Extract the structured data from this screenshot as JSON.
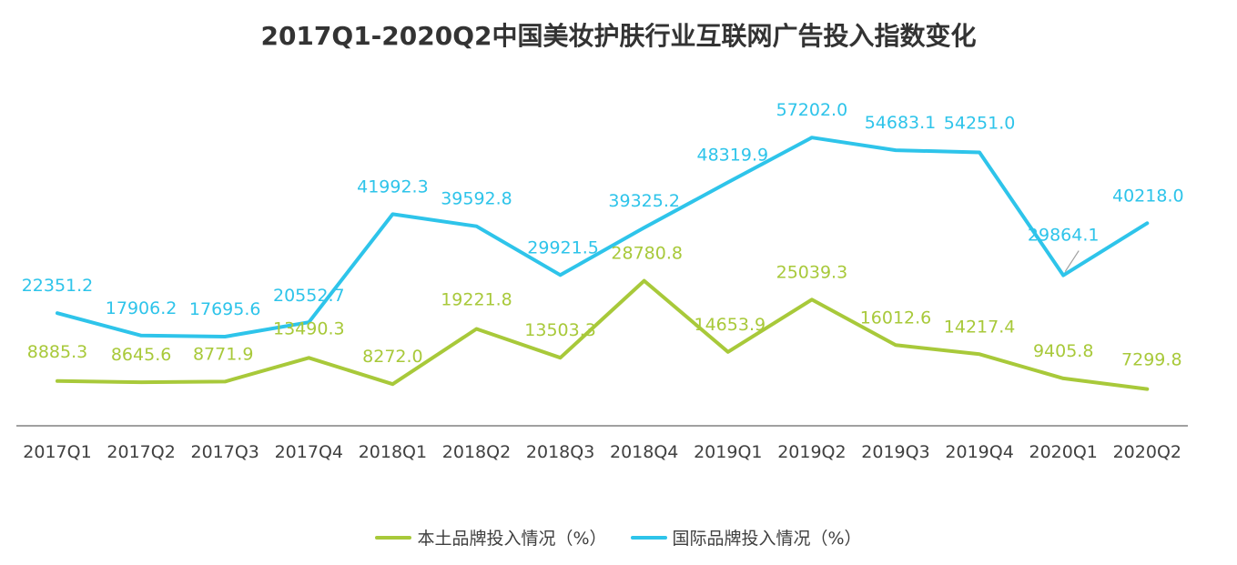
{
  "chart_data": {
    "type": "line",
    "title": "2017Q1-2020Q2中国美妆护肤行业互联网广告投入指数变化",
    "categories": [
      "2017Q1",
      "2017Q2",
      "2017Q3",
      "2017Q4",
      "2018Q1",
      "2018Q2",
      "2018Q3",
      "2018Q4",
      "2019Q1",
      "2019Q2",
      "2019Q3",
      "2019Q4",
      "2020Q1",
      "2020Q2"
    ],
    "series": [
      {
        "name": "本土品牌投入情况（%）",
        "color": "#a8c93a",
        "values": [
          8885.3,
          8645.6,
          8771.9,
          13490.3,
          8272.0,
          19221.8,
          13503.3,
          28780.8,
          14653.9,
          25039.3,
          16012.6,
          14217.4,
          9405.8,
          7299.8
        ],
        "labels": [
          "8885.3",
          "8645.6",
          "8771.9",
          "13490.3",
          "8272.0",
          "19221.8",
          "13503.3",
          "28780.8",
          "14653.9",
          "25039.3",
          "16012.6",
          "14217.4",
          "9405.8",
          "7299.8"
        ]
      },
      {
        "name": "国际品牌投入情况（%）",
        "color": "#2ec4ea",
        "values": [
          22351.2,
          17906.2,
          17695.6,
          20552.7,
          41992.3,
          39592.8,
          29921.5,
          39325.2,
          48319.9,
          57202.0,
          54683.1,
          54251.0,
          29864.1,
          40218.0
        ],
        "labels": [
          "22351.2",
          "17906.2",
          "17695.6",
          "20552.7",
          "41992.3",
          "39592.8",
          "29921.5",
          "39325.2",
          "48319.9",
          "57202.0",
          "54683.1",
          "54251.0",
          "29864.1",
          "40218.0"
        ]
      }
    ],
    "ylim": [
      0,
      65000
    ],
    "grid": false,
    "legend_position": "bottom-center"
  }
}
